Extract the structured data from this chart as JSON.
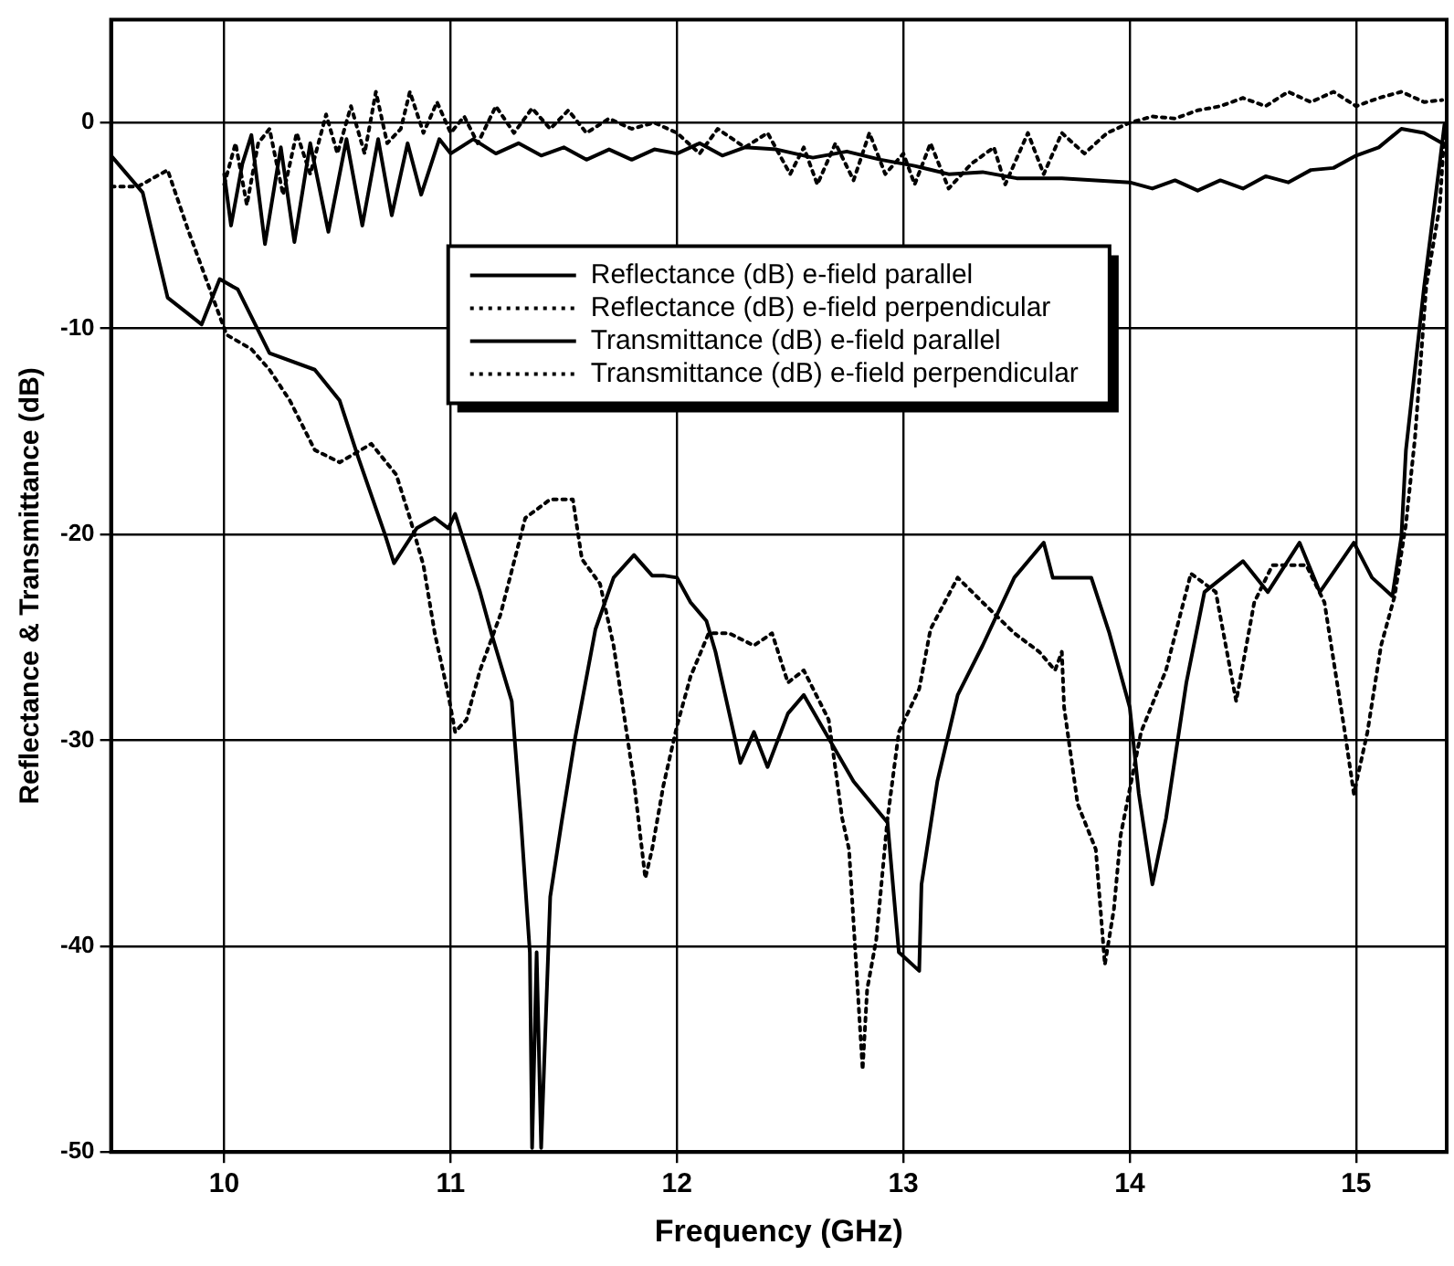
{
  "chart_data": {
    "type": "line",
    "xlabel": "Frequency (GHz)",
    "ylabel": "Reflectance & Transmittance (dB)",
    "xlim": [
      9.5,
      15.4
    ],
    "xticks": [
      10,
      11,
      12,
      13,
      14,
      15
    ],
    "ylim": [
      -50,
      5
    ],
    "yticks": [
      -50,
      -40,
      -30,
      -20,
      -10,
      0
    ],
    "grid": true,
    "legend": "top",
    "marker": "none",
    "series": [
      {
        "name": "Reflectance (dB) e-field parallel",
        "color": "#000000",
        "line_style": "solid",
        "x": [
          10.0,
          10.03,
          10.08,
          10.12,
          10.18,
          10.25,
          10.31,
          10.38,
          10.46,
          10.54,
          10.61,
          10.68,
          10.74,
          10.81,
          10.87,
          10.95,
          11.0,
          11.1,
          11.2,
          11.3,
          11.4,
          11.5,
          11.6,
          11.7,
          11.8,
          11.9,
          12.0,
          12.1,
          12.2,
          12.3,
          12.44,
          12.6,
          12.75,
          12.9,
          13.05,
          13.2,
          13.35,
          13.5,
          13.7,
          13.85,
          14.0,
          14.1,
          14.2,
          14.3,
          14.4,
          14.5,
          14.6,
          14.7,
          14.8,
          14.9,
          15.0,
          15.1,
          15.2,
          15.3,
          15.38
        ],
        "values": [
          -2.5,
          -5.0,
          -2.0,
          -0.6,
          -5.9,
          -1.2,
          -5.8,
          -1.0,
          -5.3,
          -0.8,
          -5.0,
          -0.8,
          -4.5,
          -1.0,
          -3.5,
          -0.8,
          -1.5,
          -0.8,
          -1.5,
          -1.0,
          -1.6,
          -1.2,
          -1.8,
          -1.3,
          -1.8,
          -1.3,
          -1.5,
          -1.0,
          -1.6,
          -1.2,
          -1.3,
          -1.7,
          -1.4,
          -1.8,
          -2.1,
          -2.5,
          -2.4,
          -2.7,
          -2.7,
          -2.8,
          -2.9,
          -3.2,
          -2.8,
          -3.3,
          -2.8,
          -3.2,
          -2.6,
          -2.9,
          -2.3,
          -2.2,
          -1.6,
          -1.2,
          -0.3,
          -0.5,
          -1.0
        ]
      },
      {
        "name": "Reflectance (dB) e-field perpendicular",
        "color": "#000000",
        "line_style": "dotted",
        "x": [
          10.0,
          10.05,
          10.1,
          10.15,
          10.2,
          10.26,
          10.32,
          10.38,
          10.45,
          10.5,
          10.56,
          10.62,
          10.67,
          10.72,
          10.78,
          10.82,
          10.88,
          10.94,
          11.0,
          11.06,
          11.12,
          11.2,
          11.28,
          11.36,
          11.44,
          11.52,
          11.6,
          11.7,
          11.8,
          11.9,
          12.0,
          12.1,
          12.18,
          12.3,
          12.4,
          12.5,
          12.56,
          12.62,
          12.7,
          12.78,
          12.85,
          12.92,
          13.0,
          13.05,
          13.12,
          13.2,
          13.3,
          13.4,
          13.45,
          13.55,
          13.62,
          13.7,
          13.8,
          13.9,
          14.0,
          14.1,
          14.2,
          14.3,
          14.4,
          14.5,
          14.6,
          14.7,
          14.8,
          14.9,
          15.0,
          15.1,
          15.2,
          15.3,
          15.38
        ],
        "values": [
          -3.0,
          -1.0,
          -4.0,
          -1.0,
          -0.3,
          -3.5,
          -0.5,
          -2.5,
          0.4,
          -1.5,
          0.8,
          -1.5,
          1.5,
          -1.0,
          -0.3,
          1.5,
          -0.5,
          1.0,
          -0.5,
          0.3,
          -1.0,
          0.8,
          -0.5,
          0.7,
          -0.3,
          0.6,
          -0.5,
          0.2,
          -0.3,
          0.0,
          -0.5,
          -1.5,
          -0.3,
          -1.2,
          -0.5,
          -2.5,
          -1.2,
          -3.0,
          -1.0,
          -2.8,
          -0.5,
          -2.5,
          -1.5,
          -3.0,
          -1.0,
          -3.2,
          -2.0,
          -1.2,
          -3.0,
          -0.5,
          -2.5,
          -0.5,
          -1.5,
          -0.5,
          0.0,
          0.3,
          0.2,
          0.6,
          0.8,
          1.2,
          0.8,
          1.5,
          1.0,
          1.5,
          0.8,
          1.2,
          1.5,
          1.0,
          1.1
        ]
      },
      {
        "name": "Transmittance (dB) e-field parallel",
        "color": "#000000",
        "line_style": "solid",
        "x": [
          9.5,
          9.64,
          9.75,
          9.9,
          9.98,
          10.06,
          10.2,
          10.4,
          10.51,
          10.59,
          10.71,
          10.75,
          10.85,
          10.93,
          10.99,
          11.02,
          11.13,
          11.18,
          11.27,
          11.31,
          11.35,
          11.36,
          11.38,
          11.4,
          11.44,
          11.49,
          11.55,
          11.64,
          11.72,
          11.81,
          11.89,
          11.94,
          12.0,
          12.06,
          12.13,
          12.17,
          12.28,
          12.34,
          12.4,
          12.49,
          12.56,
          12.67,
          12.78,
          12.93,
          12.98,
          13.07,
          13.08,
          13.15,
          13.24,
          13.35,
          13.49,
          13.62,
          13.66,
          13.83,
          13.91,
          14.0,
          14.04,
          14.1,
          14.16,
          14.25,
          14.33,
          14.5,
          14.61,
          14.75,
          14.84,
          14.99,
          15.07,
          15.16,
          15.2,
          15.22,
          15.3,
          15.37,
          15.39
        ],
        "values": [
          -1.6,
          -3.4,
          -8.5,
          -9.8,
          -7.6,
          -8.1,
          -11.2,
          -12.0,
          -13.5,
          -16.2,
          -20.0,
          -21.4,
          -19.7,
          -19.2,
          -19.7,
          -19.0,
          -22.8,
          -24.8,
          -28.1,
          -33.8,
          -40.3,
          -49.8,
          -40.3,
          -49.8,
          -37.6,
          -34.0,
          -29.9,
          -24.6,
          -22.1,
          -21.0,
          -22.0,
          -22.0,
          -22.1,
          -23.3,
          -24.2,
          -25.7,
          -31.1,
          -29.6,
          -31.3,
          -28.7,
          -27.8,
          -29.9,
          -32.0,
          -34.0,
          -40.3,
          -41.2,
          -37.0,
          -32.0,
          -27.8,
          -25.4,
          -22.1,
          -20.4,
          -22.1,
          -22.1,
          -24.8,
          -28.4,
          -32.6,
          -37.0,
          -33.8,
          -27.2,
          -22.8,
          -21.3,
          -22.8,
          -20.4,
          -22.8,
          -20.4,
          -22.1,
          -23.0,
          -20.1,
          -15.9,
          -8.0,
          -1.9,
          -0.1
        ]
      },
      {
        "name": "Transmittance (dB) e-field perpendicular",
        "color": "#000000",
        "line_style": "dotted",
        "x": [
          9.5,
          9.62,
          9.75,
          9.84,
          9.92,
          10.01,
          10.12,
          10.2,
          10.29,
          10.4,
          10.51,
          10.65,
          10.76,
          10.82,
          10.88,
          10.93,
          10.99,
          11.02,
          11.07,
          11.13,
          11.22,
          11.33,
          11.44,
          11.54,
          11.58,
          11.66,
          11.72,
          11.81,
          11.86,
          11.89,
          11.94,
          12.0,
          12.06,
          12.14,
          12.23,
          12.34,
          12.42,
          12.49,
          12.56,
          12.67,
          12.73,
          12.76,
          12.82,
          12.84,
          12.88,
          12.93,
          12.98,
          13.07,
          13.12,
          13.24,
          13.35,
          13.49,
          13.6,
          13.67,
          13.7,
          13.71,
          13.77,
          13.85,
          13.89,
          13.93,
          13.96,
          14.05,
          14.16,
          14.27,
          14.38,
          14.47,
          14.55,
          14.63,
          14.78,
          14.86,
          14.95,
          14.99,
          15.05,
          15.11,
          15.17,
          15.22,
          15.26,
          15.31,
          15.37,
          15.39
        ],
        "values": [
          -3.1,
          -3.1,
          -2.3,
          -5.2,
          -7.6,
          -10.3,
          -11.0,
          -12.0,
          -13.5,
          -15.9,
          -16.5,
          -15.6,
          -17.1,
          -19.2,
          -21.5,
          -24.8,
          -27.8,
          -29.6,
          -29.0,
          -26.6,
          -23.9,
          -19.2,
          -18.3,
          -18.3,
          -21.2,
          -22.4,
          -25.4,
          -32.0,
          -36.7,
          -35.3,
          -32.2,
          -29.3,
          -26.9,
          -24.8,
          -24.8,
          -25.4,
          -24.8,
          -27.2,
          -26.6,
          -29.0,
          -33.8,
          -35.3,
          -46.0,
          -42.1,
          -39.7,
          -33.8,
          -29.6,
          -27.5,
          -24.6,
          -22.1,
          -23.3,
          -24.8,
          -25.7,
          -26.6,
          -25.7,
          -28.4,
          -33.1,
          -35.3,
          -40.9,
          -38.2,
          -34.6,
          -29.6,
          -26.6,
          -21.9,
          -22.8,
          -28.1,
          -23.3,
          -21.5,
          -21.5,
          -23.3,
          -29.6,
          -32.6,
          -29.6,
          -25.4,
          -23.0,
          -19.5,
          -15.3,
          -7.9,
          -4.0,
          -0.4
        ]
      }
    ]
  }
}
